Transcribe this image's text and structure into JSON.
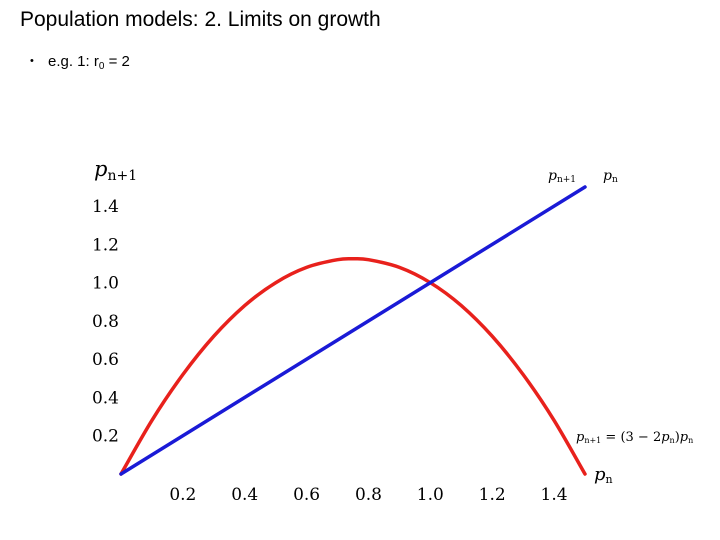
{
  "slide": {
    "title": "Population models: 2. Limits on growth",
    "bullet_prefix": "e.g. 1: r",
    "bullet_sub": "0",
    "bullet_suffix": " = 2"
  },
  "chart_data": {
    "type": "line",
    "ylabel_main": "p",
    "ylabel_sub": "n+1",
    "xlabel_main": "p",
    "xlabel_sub": "n",
    "xlim": [
      0,
      1.5
    ],
    "ylim": [
      0,
      1.5
    ],
    "x_ticks": [
      "0.2",
      "0.4",
      "0.6",
      "0.8",
      "1.0",
      "1.2",
      "1.4"
    ],
    "y_ticks": [
      "0.2",
      "0.4",
      "0.6",
      "0.8",
      "1.0",
      "1.2",
      "1.4"
    ],
    "series": [
      {
        "color": "#e8211c",
        "x": [
          0,
          0.1,
          0.2,
          0.3,
          0.4,
          0.5,
          0.6,
          0.7,
          0.75,
          0.8,
          0.9,
          1.0,
          1.1,
          1.2,
          1.3,
          1.4,
          1.5
        ],
        "y": [
          0,
          0.28,
          0.52,
          0.72,
          0.88,
          1.0,
          1.08,
          1.12,
          1.125,
          1.12,
          1.08,
          1.0,
          0.88,
          0.72,
          0.52,
          0.28,
          0
        ]
      },
      {
        "color": "#1a1ad6",
        "x": [
          0,
          1.5
        ],
        "y": [
          0,
          1.5
        ]
      }
    ],
    "annotations": {
      "top_label_a_main": "p",
      "top_label_a_sub": "n+1",
      "top_label_b_main": "p",
      "top_label_b_sub": "n",
      "formula_lhs_main": "p",
      "formula_lhs_sub": "n+1",
      "formula_mid": " = (3 − 2",
      "formula_p1_main": "p",
      "formula_p1_sub": "n",
      "formula_close": ")",
      "formula_p2_main": "p",
      "formula_p2_sub": "n"
    }
  }
}
